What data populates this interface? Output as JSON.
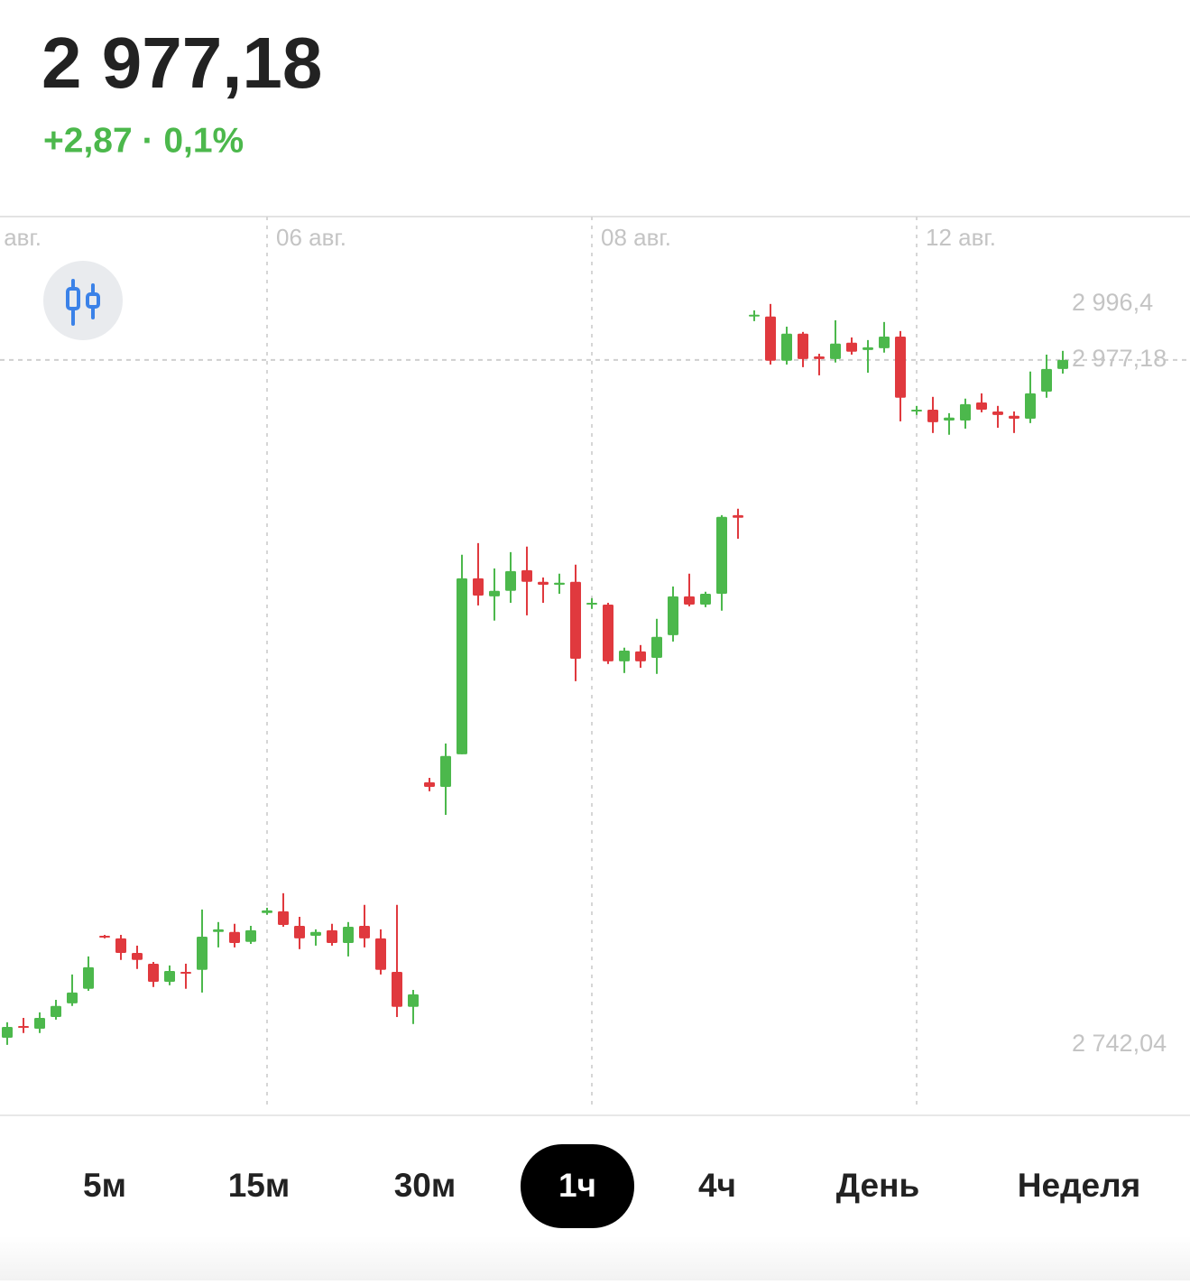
{
  "header": {
    "price": "2 977,18",
    "change": "+2,87 · 0,1%"
  },
  "chart_data": {
    "type": "candlestick",
    "up_color": "#4cb84c",
    "down_color": "#e0393e",
    "ylim": [
      2719.7,
      3026.4
    ],
    "yticks": [
      {
        "value": 2996.4,
        "label": "2 996,4"
      },
      {
        "value": 2977.18,
        "label": "2 977,18"
      },
      {
        "value": 2742.04,
        "label": "2 742,04"
      }
    ],
    "left_edge_label": "авг.",
    "categories": [
      null,
      null,
      null,
      null,
      null,
      null,
      null,
      null,
      null,
      null,
      null,
      null,
      null,
      null,
      null,
      null,
      "06 авг.",
      null,
      null,
      null,
      null,
      null,
      null,
      null,
      null,
      null,
      null,
      null,
      null,
      null,
      null,
      null,
      null,
      null,
      null,
      null,
      "08 авг.",
      null,
      null,
      null,
      null,
      null,
      null,
      null,
      null,
      null,
      null,
      null,
      null,
      null,
      null,
      null,
      null,
      null,
      null,
      null,
      "12 авг.",
      null,
      null,
      null,
      null,
      null,
      null,
      null,
      null,
      null
    ],
    "open": [
      2744.5,
      2748.5,
      2747.6,
      2751.6,
      2756.3,
      2761.3,
      2779.5,
      2778.6,
      2773.6,
      2769.9,
      2763.7,
      2767.1,
      2767.8,
      2780.8,
      2780.8,
      2777.4,
      2787.3,
      2787.9,
      2782.9,
      2779.5,
      2781.4,
      2777.0,
      2782.9,
      2778.6,
      2767.1,
      2755.1,
      2832.2,
      2830.6,
      2841.8,
      2902.2,
      2896.0,
      2897.9,
      2905.0,
      2901.0,
      2900.0,
      2901.0,
      2893.2,
      2893.2,
      2873.7,
      2877.1,
      2874.9,
      2882.7,
      2896.0,
      2893.2,
      2896.9,
      2923.9,
      2992.1,
      2992.1,
      2976.9,
      2986.2,
      2978.4,
      2977.5,
      2983.1,
      2980.6,
      2981.2,
      2985.2,
      2959.5,
      2960.1,
      2956.4,
      2956.4,
      2962.6,
      2959.5,
      2958.0,
      2957.0,
      2966.3,
      2974.1
    ],
    "high": [
      2749.8,
      2751.3,
      2753.2,
      2757.5,
      2766.2,
      2772.4,
      2779.8,
      2779.8,
      2776.1,
      2770.5,
      2769.3,
      2769.9,
      2788.5,
      2784.2,
      2783.6,
      2782.9,
      2789.1,
      2794.1,
      2786.0,
      2781.7,
      2783.6,
      2784.2,
      2790.1,
      2781.7,
      2790.1,
      2760.9,
      2833.7,
      2845.5,
      2910.3,
      2914.3,
      2905.6,
      2911.2,
      2913.1,
      2902.5,
      2903.8,
      2906.9,
      2895.4,
      2893.8,
      2878.4,
      2879.3,
      2888.3,
      2899.4,
      2903.8,
      2897.6,
      2923.9,
      2926.1,
      2994.2,
      2996.4,
      2988.6,
      2986.8,
      2979.3,
      2990.8,
      2984.9,
      2984.0,
      2990.2,
      2987.1,
      2961.4,
      2964.5,
      2958.9,
      2963.9,
      2965.7,
      2961.4,
      2959.5,
      2973.2,
      2979.0,
      2980.3
    ],
    "low": [
      2742.04,
      2746.1,
      2746.1,
      2750.7,
      2755.4,
      2760.6,
      2778.6,
      2771.2,
      2768.1,
      2761.9,
      2762.5,
      2761.3,
      2760.0,
      2775.5,
      2775.5,
      2776.7,
      2786.7,
      2782.6,
      2774.9,
      2776.1,
      2776.1,
      2772.4,
      2775.5,
      2766.2,
      2751.6,
      2749.2,
      2829.1,
      2821.0,
      2841.8,
      2892.9,
      2887.7,
      2893.8,
      2889.5,
      2893.8,
      2896.9,
      2866.9,
      2891.7,
      2872.8,
      2869.7,
      2871.5,
      2869.4,
      2880.5,
      2892.6,
      2892.3,
      2891.1,
      2915.8,
      2990.5,
      2975.6,
      2975.6,
      2974.7,
      2971.9,
      2976.3,
      2979.0,
      2972.8,
      2979.7,
      2956.1,
      2958.3,
      2952.1,
      2951.5,
      2953.6,
      2959.2,
      2953.9,
      2952.1,
      2955.5,
      2964.2,
      2972.5
    ],
    "close": [
      2748.2,
      2747.9,
      2751.3,
      2755.4,
      2760.0,
      2768.7,
      2778.9,
      2773.6,
      2771.2,
      2763.7,
      2767.4,
      2766.5,
      2779.2,
      2781.7,
      2777.0,
      2781.4,
      2788.2,
      2783.2,
      2778.6,
      2780.8,
      2777.0,
      2782.6,
      2778.6,
      2767.8,
      2755.1,
      2759.4,
      2830.6,
      2841.2,
      2902.2,
      2896.3,
      2897.9,
      2904.7,
      2901.0,
      2900.0,
      2900.7,
      2874.6,
      2893.8,
      2873.7,
      2877.4,
      2873.7,
      2882.1,
      2896.0,
      2893.2,
      2896.9,
      2923.3,
      2923.0,
      2992.7,
      2976.9,
      2986.2,
      2977.5,
      2977.5,
      2982.8,
      2980.0,
      2981.5,
      2985.2,
      2964.2,
      2960.1,
      2955.8,
      2957.4,
      2962.0,
      2960.1,
      2958.3,
      2957.0,
      2965.7,
      2974.1,
      2977.18
    ]
  },
  "tabs": [
    {
      "label": "5м",
      "selected": false
    },
    {
      "label": "15м",
      "selected": false
    },
    {
      "label": "30м",
      "selected": false
    },
    {
      "label": "1ч",
      "selected": true
    },
    {
      "label": "4ч",
      "selected": false
    },
    {
      "label": "День",
      "selected": false
    },
    {
      "label": "Неделя",
      "selected": false
    }
  ]
}
